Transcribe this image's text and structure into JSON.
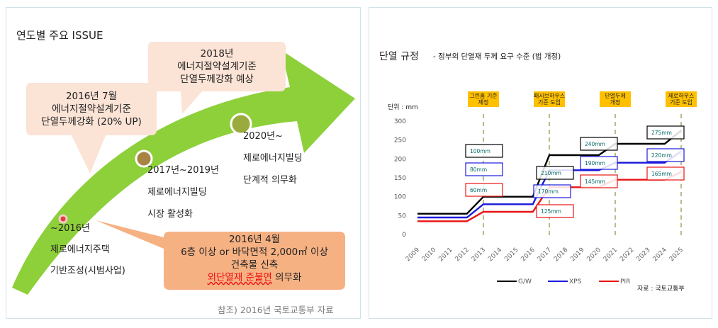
{
  "left_panel": {
    "title": "연도별 주요 ISSUE",
    "callout_2018": [
      "2018년",
      "에너지절약설계기준",
      "단열두께강화 예상"
    ],
    "callout_2016_7": [
      "2016년 7월",
      "에너지절약설계기준",
      "단열두께강화 (20% UP)"
    ],
    "callout_2016_4": {
      "lines": [
        "2016년 4월",
        "6층 이상 or 바닥면적 2,000㎡ 이상",
        "건축물 신축"
      ],
      "highlight": "외단열재 준불연",
      "suffix": " 의무화"
    },
    "milestone_2020": [
      "2020년~",
      "제로에너지빌딩",
      "단계적 의무화"
    ],
    "milestone_2017": [
      "2017년~2019년",
      "제로에너지빌딩",
      "시장 활성화"
    ],
    "milestone_2016": [
      "~2016년",
      "제로에너지주택",
      "기반조성(시범사업)"
    ],
    "source": "참조) 2016년 국토교통부 자료"
  },
  "chart_data": {
    "type": "line",
    "title": "단열 규정",
    "subtitle": "- 정부의 단열재 두께 요구 수준 (법 개정)",
    "unit_label": "단위 : mm",
    "source": "자료 : 국토교통부",
    "categories": [
      "2009",
      "2010",
      "2011",
      "2012",
      "2013",
      "2014",
      "2015",
      "2016",
      "2017",
      "2018",
      "2019",
      "2020",
      "2021",
      "2022",
      "2023",
      "2024",
      "2025"
    ],
    "ylim": [
      0,
      300
    ],
    "yticks": [
      "0",
      "50",
      "100",
      "150",
      "200",
      "250",
      "300"
    ],
    "series": [
      {
        "name": "G/W",
        "color": "#000000",
        "values": [
          55,
          55,
          55,
          55,
          100,
          100,
          100,
          100,
          210,
          210,
          210,
          210,
          240,
          240,
          240,
          240,
          275
        ]
      },
      {
        "name": "XPS",
        "color": "#1a1adc",
        "values": [
          45,
          45,
          45,
          45,
          80,
          80,
          80,
          80,
          170,
          170,
          170,
          170,
          190,
          190,
          190,
          190,
          220
        ]
      },
      {
        "name": "PIR",
        "color": "#e81414",
        "values": [
          35,
          35,
          35,
          35,
          60,
          60,
          60,
          60,
          125,
          125,
          125,
          125,
          145,
          145,
          145,
          145,
          165
        ]
      }
    ],
    "event_markers": [
      {
        "x": "2013",
        "label": [
          "그린홈 기준",
          "제정"
        ]
      },
      {
        "x": "2017",
        "label": [
          "패시브하우스",
          "기준 도입"
        ]
      },
      {
        "x": "2021",
        "label": [
          "단열두께",
          "개정"
        ]
      },
      {
        "x": "2025",
        "label": [
          "제로하우스",
          "기준 도입"
        ]
      }
    ],
    "value_labels": [
      {
        "text": "100mm",
        "series": "G/W"
      },
      {
        "text": "80mm",
        "series": "XPS"
      },
      {
        "text": "60mm",
        "series": "PIR"
      },
      {
        "text": "210mm",
        "series": "G/W"
      },
      {
        "text": "170mm",
        "series": "XPS"
      },
      {
        "text": "125mm",
        "series": "PIR"
      },
      {
        "text": "240mm",
        "series": "G/W"
      },
      {
        "text": "190mm",
        "series": "XPS"
      },
      {
        "text": "145mm",
        "series": "PIR"
      },
      {
        "text": "275mm",
        "series": "G/W"
      },
      {
        "text": "220mm",
        "series": "XPS"
      },
      {
        "text": "165mm",
        "series": "PIR"
      }
    ]
  }
}
